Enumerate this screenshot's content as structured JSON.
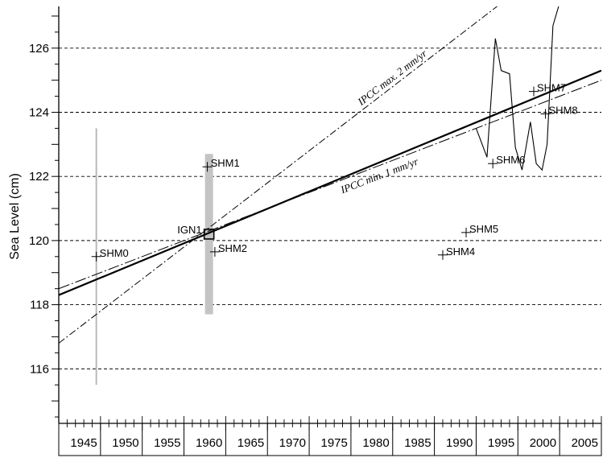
{
  "chart_data": {
    "type": "line",
    "title": "",
    "xlabel": "",
    "ylabel": "Sea Level (cm)",
    "xlim": [
      1942,
      2007
    ],
    "ylim": [
      114.3,
      127.3
    ],
    "x_ticks": [
      1945,
      1950,
      1955,
      1960,
      1965,
      1970,
      1975,
      1980,
      1985,
      1990,
      1995,
      2000,
      2005
    ],
    "y_ticks": [
      116,
      118,
      120,
      122,
      124,
      126
    ],
    "grid": "horizontal-dashed",
    "lines": [
      {
        "label": "",
        "style": "solid-thick",
        "x": [
          1942,
          2007
        ],
        "y": [
          118.3,
          125.3
        ]
      },
      {
        "label": "IPCC max. 2 mm/yr",
        "style": "dash-dot",
        "x": [
          1942,
          2007
        ],
        "y": [
          116.8,
          129.8
        ]
      },
      {
        "label": "IPCC min. 1 mm/yr",
        "style": "long-dash-dot",
        "x": [
          1942,
          2007
        ],
        "y": [
          118.5,
          125.0
        ]
      }
    ],
    "points": [
      {
        "label": "SHM0",
        "x": 1946.5,
        "y": 119.5
      },
      {
        "label": "SHM1",
        "x": 1959.8,
        "y": 122.3
      },
      {
        "label": "IGN1",
        "x": 1960.0,
        "y": 120.2
      },
      {
        "label": "SHM2",
        "x": 1960.7,
        "y": 119.65
      },
      {
        "label": "SHM4",
        "x": 1988.0,
        "y": 119.55
      },
      {
        "label": "SHM5",
        "x": 1990.8,
        "y": 120.25
      },
      {
        "label": "SHM6",
        "x": 1994.0,
        "y": 122.4
      },
      {
        "label": "SHM7",
        "x": 1998.9,
        "y": 124.65
      },
      {
        "label": "SHM8",
        "x": 2000.3,
        "y": 123.95
      }
    ],
    "error_bars": [
      {
        "x": 1946.5,
        "low": 115.5,
        "high": 123.5,
        "style": "thin-gray"
      },
      {
        "x": 1960.0,
        "low": 117.7,
        "high": 122.7,
        "style": "thick-gray"
      }
    ],
    "series": [
      {
        "name": "",
        "style": "solid-thin",
        "x": [
          1992.0,
          1993.3,
          1994.3,
          1995.0,
          1996.0,
          1996.7,
          1997.5,
          1998.5,
          1999.2,
          1999.9,
          2000.5,
          2001.2,
          2002.1
        ],
        "y": [
          123.5,
          122.6,
          126.3,
          125.3,
          125.2,
          122.9,
          122.2,
          123.7,
          122.4,
          122.2,
          123.0,
          126.7,
          127.5
        ]
      }
    ]
  }
}
